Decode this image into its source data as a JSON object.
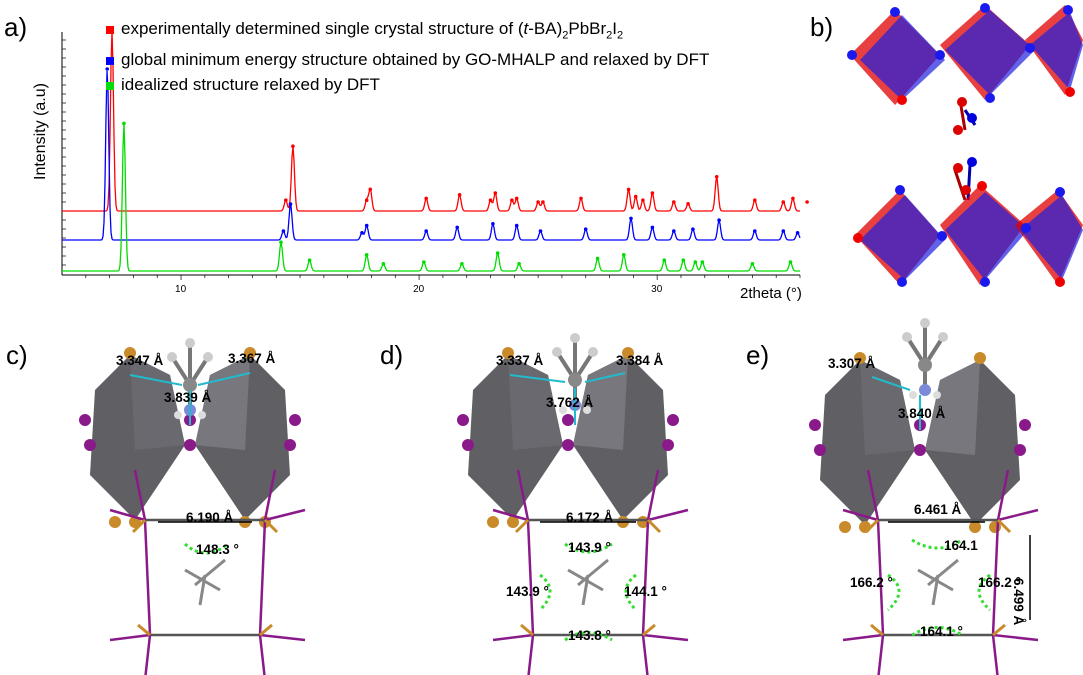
{
  "panels": {
    "a": "a)",
    "b": "b)",
    "c": "c)",
    "d": "d)",
    "e": "e)"
  },
  "chart_data": {
    "type": "line",
    "ylabel": "Intensity (a.u)",
    "xlabel": "2theta (°)",
    "xlim": [
      5,
      36
    ],
    "x_ticks": [
      10,
      20,
      30
    ],
    "grid": false,
    "legend_placement": "top",
    "series": [
      {
        "name": "experimentally determined single crystal structure of (t-BA)2PbBr2I2",
        "color": "#ff0000",
        "peaks": [
          [
            7.1,
            1.0
          ],
          [
            14.4,
            0.06
          ],
          [
            14.7,
            0.36
          ],
          [
            17.8,
            0.06
          ],
          [
            17.95,
            0.12
          ],
          [
            20.3,
            0.07
          ],
          [
            21.7,
            0.09
          ],
          [
            23.0,
            0.06
          ],
          [
            23.2,
            0.1
          ],
          [
            23.9,
            0.06
          ],
          [
            24.1,
            0.07
          ],
          [
            25.0,
            0.05
          ],
          [
            25.2,
            0.05
          ],
          [
            26.8,
            0.07
          ],
          [
            28.8,
            0.12
          ],
          [
            29.1,
            0.08
          ],
          [
            29.4,
            0.06
          ],
          [
            29.8,
            0.1
          ],
          [
            30.7,
            0.05
          ],
          [
            31.3,
            0.04
          ],
          [
            32.5,
            0.19
          ],
          [
            34.1,
            0.06
          ],
          [
            35.3,
            0.05
          ],
          [
            35.7,
            0.07
          ],
          [
            36.3,
            0.05
          ]
        ]
      },
      {
        "name": "global minimum energy structure obtained by GO-MHALP and relaxed by DFT",
        "color": "#0000ff",
        "peaks": [
          [
            6.9,
            0.95
          ],
          [
            14.3,
            0.05
          ],
          [
            14.6,
            0.2
          ],
          [
            17.6,
            0.04
          ],
          [
            17.8,
            0.08
          ],
          [
            20.3,
            0.05
          ],
          [
            21.6,
            0.07
          ],
          [
            23.1,
            0.09
          ],
          [
            24.1,
            0.08
          ],
          [
            25.1,
            0.05
          ],
          [
            27.0,
            0.06
          ],
          [
            28.9,
            0.12
          ],
          [
            29.8,
            0.07
          ],
          [
            30.7,
            0.05
          ],
          [
            31.5,
            0.06
          ],
          [
            32.6,
            0.11
          ],
          [
            34.1,
            0.05
          ],
          [
            35.3,
            0.05
          ],
          [
            35.9,
            0.04
          ],
          [
            36.7,
            0.05
          ]
        ]
      },
      {
        "name": "idealized structure relaxed by DFT",
        "color": "#00dd00",
        "peaks": [
          [
            7.6,
            0.82
          ],
          [
            14.2,
            0.16
          ],
          [
            15.4,
            0.06
          ],
          [
            17.8,
            0.09
          ],
          [
            18.5,
            0.04
          ],
          [
            20.2,
            0.05
          ],
          [
            21.8,
            0.04
          ],
          [
            23.3,
            0.1
          ],
          [
            24.2,
            0.04
          ],
          [
            27.5,
            0.07
          ],
          [
            28.6,
            0.09
          ],
          [
            30.3,
            0.06
          ],
          [
            31.1,
            0.06
          ],
          [
            31.6,
            0.05
          ],
          [
            31.9,
            0.05
          ],
          [
            34.0,
            0.04
          ],
          [
            35.6,
            0.05
          ],
          [
            36.8,
            0.04
          ],
          [
            37.4,
            0.05
          ]
        ]
      }
    ]
  },
  "legend": {
    "item1_pre": "experimentally determined single crystal structure of (",
    "item1_italic": "t",
    "item1_mid": "-BA)",
    "item1_sub1": "2",
    "item1_pb": "PbBr",
    "item1_sub2": "2",
    "item1_i": "I",
    "item1_sub3": "2",
    "item2": "global minimum energy structure obtained by GO-MHALP and relaxed by DFT",
    "item3": "idealized structure relaxed by DFT"
  },
  "measurements": {
    "c": {
      "left": "3.347 Å",
      "right": "3.367 Å",
      "center": "3.839 Å",
      "distance": "6.190 Å",
      "angle": "148.3 °"
    },
    "d": {
      "left": "3.337 Å",
      "right": "3.384 Å",
      "center": "3.762 Å",
      "distance": "6.172 Å",
      "angle_top": "143.9 °",
      "angle_left": "143.9 °",
      "angle_right": "144.1 °",
      "angle_bottom": "143.8 °"
    },
    "e": {
      "left": "3.307 Å",
      "center": "3.840 Å",
      "distance": "6.461 Å",
      "height": "6.499 Å",
      "angle_top": "164.1",
      "angle_left": "166.2 °",
      "angle_right": "166.2 °",
      "angle_bottom": "164.1 °"
    }
  },
  "colors": {
    "pb_polyhedron": "#555558",
    "iodine": "#8a1a8a",
    "bromine": "#c98a2a",
    "bond": "#22bbcc",
    "angle_arc": "#33dd33"
  }
}
